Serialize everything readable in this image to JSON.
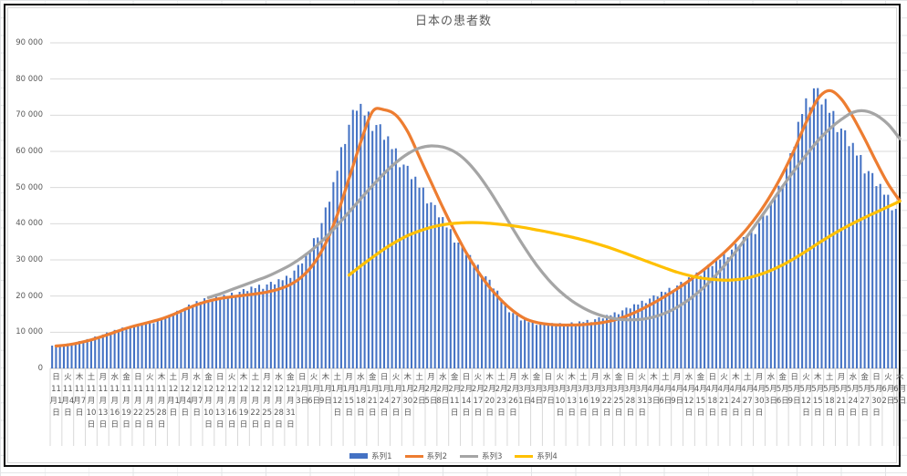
{
  "chart_data": {
    "type": "combo",
    "title": "日本の患者数",
    "grid": "horizontal",
    "legend_position": "bottom",
    "ylim": [
      0,
      90000
    ],
    "y_ticks": [
      0,
      10000,
      20000,
      30000,
      40000,
      50000,
      60000,
      70000,
      80000,
      90000
    ],
    "y_tick_labels": [
      "0",
      "10 000",
      "20 000",
      "30 000",
      "40 000",
      "50 000",
      "60 000",
      "70 000",
      "80 000",
      "90 000"
    ],
    "x_note": "daily categories 11月1日〜6月5日, axis labels every 3 days",
    "days_total": 217,
    "label_interval_days": 3,
    "x_labels": [
      [
        "日",
        "11",
        "月1",
        "日"
      ],
      [
        "火",
        "11",
        "月4",
        "日"
      ],
      [
        "木",
        "11",
        "月7",
        "日"
      ],
      [
        "土",
        "11",
        "月",
        "10",
        "日"
      ],
      [
        "月",
        "11",
        "月",
        "13",
        "日"
      ],
      [
        "水",
        "11",
        "月",
        "16",
        "日"
      ],
      [
        "金",
        "11",
        "月",
        "19",
        "日"
      ],
      [
        "日",
        "11",
        "月",
        "22",
        "日"
      ],
      [
        "火",
        "11",
        "月",
        "25",
        "日"
      ],
      [
        "木",
        "11",
        "月",
        "28",
        "日"
      ],
      [
        "土",
        "12",
        "月1",
        "日"
      ],
      [
        "月",
        "12",
        "月4",
        "日"
      ],
      [
        "水",
        "12",
        "月7",
        "日"
      ],
      [
        "金",
        "12",
        "月",
        "10",
        "日"
      ],
      [
        "日",
        "12",
        "月",
        "13",
        "日"
      ],
      [
        "火",
        "12",
        "月",
        "16",
        "日"
      ],
      [
        "木",
        "12",
        "月",
        "19",
        "日"
      ],
      [
        "土",
        "12",
        "月",
        "22",
        "日"
      ],
      [
        "月",
        "12",
        "月",
        "25",
        "日"
      ],
      [
        "水",
        "12",
        "月",
        "28",
        "日"
      ],
      [
        "金",
        "12",
        "月",
        "31",
        "日"
      ],
      [
        "日",
        "1月",
        "3日"
      ],
      [
        "火",
        "1月",
        "6日"
      ],
      [
        "木",
        "1月",
        "9日"
      ],
      [
        "土",
        "1月",
        "12",
        "日"
      ],
      [
        "月",
        "1月",
        "15",
        "日"
      ],
      [
        "水",
        "1月",
        "18",
        "日"
      ],
      [
        "金",
        "1月",
        "21",
        "日"
      ],
      [
        "日",
        "1月",
        "24",
        "日"
      ],
      [
        "火",
        "1月",
        "27",
        "日"
      ],
      [
        "木",
        "1月",
        "30",
        "日"
      ],
      [
        "土",
        "2月",
        "2日"
      ],
      [
        "月",
        "2月",
        "5日"
      ],
      [
        "水",
        "2月",
        "8日"
      ],
      [
        "金",
        "2月",
        "11",
        "日"
      ],
      [
        "日",
        "2月",
        "14",
        "日"
      ],
      [
        "火",
        "2月",
        "17",
        "日"
      ],
      [
        "木",
        "2月",
        "20",
        "日"
      ],
      [
        "土",
        "2月",
        "23",
        "日"
      ],
      [
        "月",
        "2月",
        "26",
        "日"
      ],
      [
        "水",
        "3月",
        "1日"
      ],
      [
        "金",
        "3月",
        "4日"
      ],
      [
        "日",
        "3月",
        "7日"
      ],
      [
        "火",
        "3月",
        "10",
        "日"
      ],
      [
        "木",
        "3月",
        "13",
        "日"
      ],
      [
        "土",
        "3月",
        "16",
        "日"
      ],
      [
        "月",
        "3月",
        "19",
        "日"
      ],
      [
        "水",
        "3月",
        "22",
        "日"
      ],
      [
        "金",
        "3月",
        "25",
        "日"
      ],
      [
        "日",
        "3月",
        "28",
        "日"
      ],
      [
        "火",
        "3月",
        "31",
        "日"
      ],
      [
        "木",
        "4月",
        "3日"
      ],
      [
        "土",
        "4月",
        "6日"
      ],
      [
        "月",
        "4月",
        "9日"
      ],
      [
        "水",
        "4月",
        "12",
        "日"
      ],
      [
        "金",
        "4月",
        "15",
        "日"
      ],
      [
        "日",
        "4月",
        "18",
        "日"
      ],
      [
        "火",
        "4月",
        "21",
        "日"
      ],
      [
        "木",
        "4月",
        "24",
        "日"
      ],
      [
        "土",
        "4月",
        "27",
        "日"
      ],
      [
        "月",
        "4月",
        "30",
        "日"
      ],
      [
        "水",
        "5月",
        "3日"
      ],
      [
        "金",
        "5月",
        "6日"
      ],
      [
        "日",
        "5月",
        "9日"
      ],
      [
        "火",
        "5月",
        "12",
        "日"
      ],
      [
        "木",
        "5月",
        "15",
        "日"
      ],
      [
        "土",
        "5月",
        "18",
        "日"
      ],
      [
        "月",
        "5月",
        "21",
        "日"
      ],
      [
        "水",
        "5月",
        "24",
        "日"
      ],
      [
        "金",
        "5月",
        "27",
        "日"
      ],
      [
        "日",
        "5月",
        "30",
        "日"
      ],
      [
        "火",
        "6月",
        "2日"
      ],
      [
        "木",
        "6月",
        "5日"
      ]
    ],
    "series": [
      {
        "name": "系列1",
        "type": "bar",
        "color": "#4472C4",
        "values": [
          6300,
          6700,
          7300,
          8100,
          9200,
          10300,
          11300,
          12000,
          12600,
          13600,
          14800,
          16500,
          18200,
          19400,
          19800,
          20600,
          21600,
          22600,
          23400,
          24200,
          25600,
          28600,
          33500,
          41000,
          51500,
          66000,
          74200,
          71000,
          67500,
          62500,
          57500,
          53000,
          48500,
          43500,
          38500,
          34000,
          30000,
          26000,
          21500,
          16500,
          13800,
          12900,
          12600,
          12500,
          12600,
          13000,
          13600,
          14400,
          15500,
          16800,
          18200,
          19700,
          21200,
          22800,
          24500,
          26500,
          28700,
          31000,
          33500,
          36300,
          39500,
          44000,
          50500,
          59500,
          72500,
          79000,
          74500,
          69500,
          64000,
          59000,
          54000,
          49500,
          45000
        ],
        "weekly_variation": [
          1.0,
          0.96,
          1.0,
          0.97,
          1.0,
          0.94,
          0.98
        ]
      },
      {
        "name": "系列2",
        "type": "line",
        "color": "#ED7D31",
        "values": [
          6200,
          6500,
          7100,
          7900,
          8900,
          10000,
          11100,
          12000,
          12800,
          13700,
          14900,
          16300,
          17600,
          18600,
          19300,
          19800,
          20200,
          20600,
          21100,
          21900,
          23200,
          25400,
          29000,
          34500,
          42500,
          52500,
          62500,
          71000,
          71500,
          70000,
          65500,
          58500,
          51500,
          44500,
          38000,
          32000,
          26800,
          22400,
          18800,
          15900,
          13800,
          12700,
          12200,
          12000,
          12000,
          12100,
          12400,
          12900,
          13700,
          14900,
          16400,
          18100,
          20000,
          22000,
          24200,
          26600,
          29200,
          32000,
          35200,
          38800,
          43000,
          48000,
          53800,
          60500,
          68000,
          74500,
          76800,
          74500,
          69500,
          63500,
          57000,
          51000,
          46300
        ]
      },
      {
        "name": "系列3",
        "type": "line",
        "color": "#A5A5A5",
        "values": [
          null,
          null,
          null,
          null,
          null,
          null,
          null,
          null,
          null,
          null,
          null,
          null,
          null,
          19600,
          20600,
          21800,
          23000,
          24200,
          25400,
          26900,
          28600,
          30700,
          33200,
          36200,
          39600,
          43200,
          46900,
          50500,
          53900,
          56900,
          59300,
          60900,
          61500,
          61200,
          59900,
          57400,
          53700,
          49100,
          43900,
          38500,
          33300,
          28600,
          24600,
          21300,
          18700,
          16700,
          15200,
          14200,
          13600,
          13400,
          13600,
          14200,
          15300,
          16900,
          19000,
          21600,
          24700,
          28300,
          32300,
          36600,
          41100,
          45700,
          50300,
          54800,
          59000,
          62900,
          66200,
          68800,
          70800,
          71200,
          70000,
          67500,
          63500
        ]
      },
      {
        "name": "系列4",
        "type": "line",
        "color": "#FFC000",
        "values": [
          null,
          null,
          null,
          null,
          null,
          null,
          null,
          null,
          null,
          null,
          null,
          null,
          null,
          null,
          null,
          null,
          null,
          null,
          null,
          null,
          null,
          null,
          null,
          null,
          null,
          25800,
          28300,
          30700,
          33000,
          35000,
          36700,
          38000,
          39000,
          39700,
          40100,
          40300,
          40300,
          40100,
          39800,
          39400,
          38900,
          38300,
          37700,
          37000,
          36300,
          35500,
          34600,
          33600,
          32500,
          31300,
          30100,
          28900,
          27700,
          26600,
          25700,
          25000,
          24600,
          24400,
          24500,
          25000,
          25900,
          27100,
          28600,
          30400,
          32400,
          34500,
          36500,
          38400,
          40100,
          41700,
          43200,
          44700,
          46200
        ]
      }
    ]
  }
}
